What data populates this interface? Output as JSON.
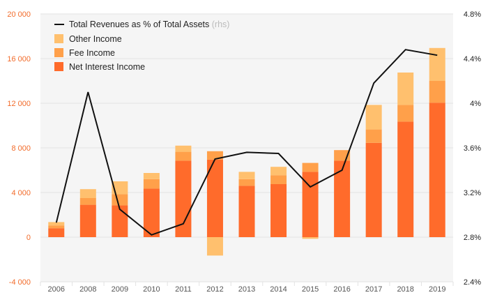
{
  "chart_data": {
    "type": "bar",
    "stacked": true,
    "categories": [
      "2006",
      "2008",
      "2009",
      "2010",
      "2011",
      "2012",
      "2013",
      "2014",
      "2015",
      "2016",
      "2017",
      "2018",
      "2019"
    ],
    "series": [
      {
        "name": "Net Interest Income",
        "color": "#ff6b2b",
        "values": [
          800,
          2900,
          2850,
          4350,
          6850,
          6950,
          4600,
          4750,
          5850,
          6850,
          8450,
          10350,
          12050
        ]
      },
      {
        "name": "Fee Income",
        "color": "#ffa04a",
        "values": [
          250,
          600,
          1000,
          850,
          800,
          750,
          600,
          800,
          800,
          950,
          1200,
          1500,
          1950
        ]
      },
      {
        "name": "Other Income",
        "color": "#ffc06e",
        "values": [
          300,
          800,
          1150,
          550,
          550,
          -1650,
          650,
          750,
          -150,
          0,
          2200,
          2900,
          2950
        ]
      }
    ],
    "line": {
      "name": "Total Revenues as % of Total Assets",
      "suffix": "(rhs)",
      "color": "#111111",
      "values": [
        2.93,
        4.1,
        3.05,
        2.82,
        2.92,
        3.5,
        3.56,
        3.55,
        3.25,
        3.4,
        4.18,
        4.48,
        4.43
      ]
    },
    "ylim": [
      -4000,
      20000
    ],
    "yticks": [
      -4000,
      0,
      4000,
      8000,
      12000,
      16000,
      20000
    ],
    "ytick_labels": [
      "-4 000",
      "0",
      "4 000",
      "8 000",
      "12 000",
      "16 000",
      "20 000"
    ],
    "y2lim": [
      2.4,
      4.8
    ],
    "y2ticks": [
      2.4,
      2.8,
      3.2,
      3.6,
      4.0,
      4.4,
      4.8
    ],
    "y2tick_labels": [
      "2.4%",
      "2.8%",
      "3.2%",
      "3.6%",
      "4%",
      "4.4%",
      "4.8%"
    ],
    "grid": true,
    "legend_position": "top-left"
  }
}
